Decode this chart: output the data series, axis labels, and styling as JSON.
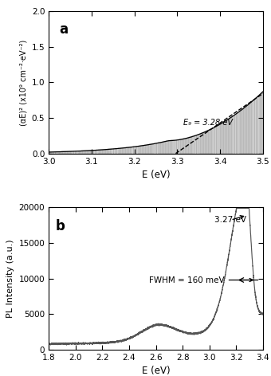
{
  "panel_a": {
    "label": "a",
    "xlabel": "E (eV)",
    "ylabel": "(αE)² (x10⁹ cm⁻²·eV⁻²)",
    "xlim": [
      3.0,
      3.5
    ],
    "ylim": [
      0.0,
      2.0
    ],
    "yticks": [
      0.0,
      0.5,
      1.0,
      1.5,
      2.0
    ],
    "xticks": [
      3.0,
      3.1,
      3.2,
      3.3,
      3.4,
      3.5
    ],
    "eg_value": 3.28,
    "eg_label": "E₉ = 3.28 eV"
  },
  "panel_b": {
    "label": "b",
    "xlabel": "E (eV)",
    "ylabel": "PL Intensity (a.u.)",
    "xlim": [
      1.8,
      3.4
    ],
    "ylim": [
      0,
      20000
    ],
    "yticks": [
      0,
      5000,
      10000,
      15000,
      20000
    ],
    "xticks": [
      1.8,
      2.0,
      2.2,
      2.4,
      2.6,
      2.8,
      3.0,
      3.2,
      3.4
    ],
    "peak_eV": 3.27,
    "peak_intensity": 19200,
    "fwhm_meV": 160,
    "annotation_peak": "3.27 eV",
    "annotation_fwhm": "FWHM = 160 meV"
  },
  "line_color": "#555555",
  "bg_color": "#ffffff"
}
